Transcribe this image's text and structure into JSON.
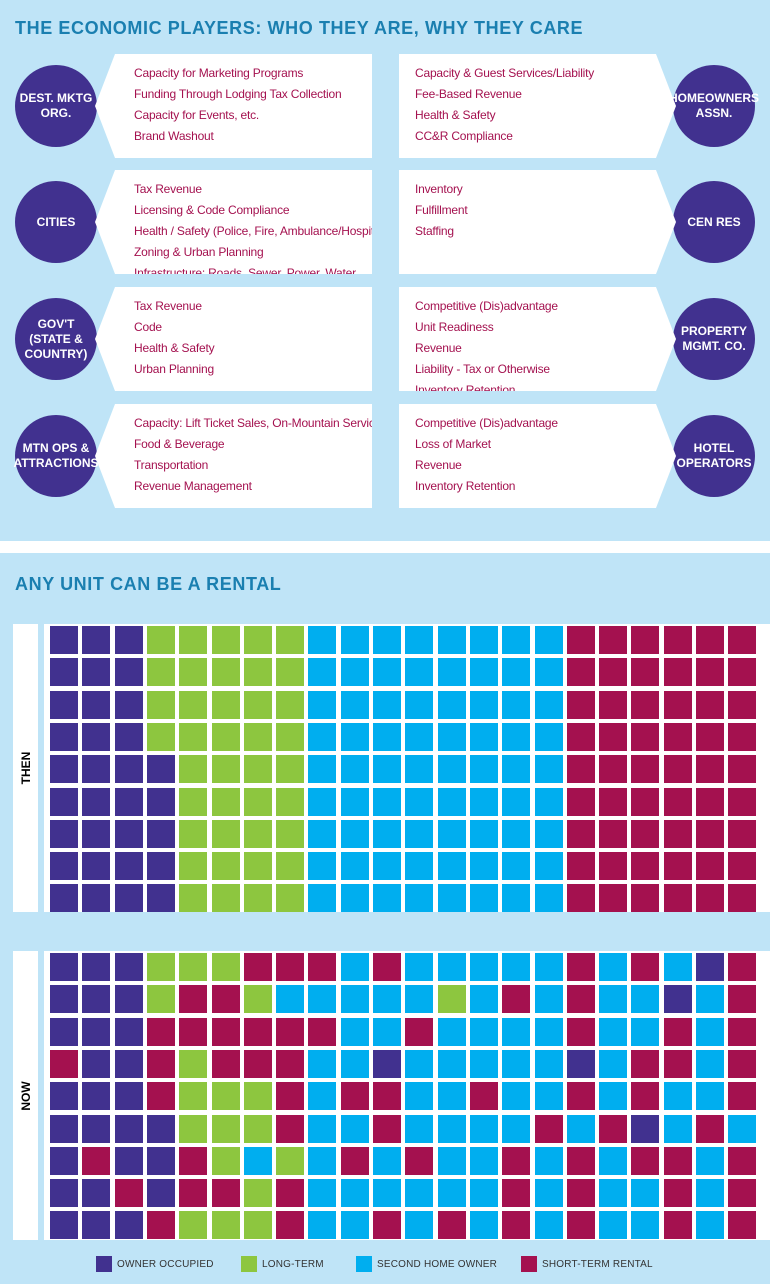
{
  "section1_title": "THE ECONOMIC PLAYERS: WHO THEY ARE, WHY THEY CARE",
  "section2_title": "ANY UNIT CAN BE A RENTAL",
  "colors": {
    "owner_occupied": "#41318f",
    "long_term": "#8dc63f",
    "second_home_owner": "#00aeef",
    "short_term_rental": "#a4114f"
  },
  "players": [
    {
      "left": {
        "name": "DEST. MKTG\nORG.",
        "items": [
          "Capacity for Marketing Programs",
          "Funding Through Lodging Tax Collection",
          "Capacity for Events, etc.",
          "Brand Washout"
        ]
      },
      "right": {
        "name": "HOMEOWNERS\nASSN.",
        "items": [
          "Capacity & Guest Services/Liability",
          "Fee-Based Revenue",
          "Health & Safety",
          "CC&R Compliance"
        ]
      }
    },
    {
      "left": {
        "name": "CITIES",
        "items": [
          "Tax Revenue",
          "Licensing & Code Compliance",
          "Health / Safety (Police, Fire, Ambulance/Hospital)",
          "Zoning & Urban Planning",
          "Infrastructure:  Roads, Sewer, Power, Water"
        ]
      },
      "right": {
        "name": "CEN RES",
        "items": [
          "Inventory",
          "Fulfillment",
          "Staffing"
        ]
      }
    },
    {
      "left": {
        "name": "GOV'T\n(STATE &\nCOUNTRY)",
        "items": [
          "Tax Revenue",
          "Code",
          "Health & Safety",
          "Urban Planning"
        ]
      },
      "right": {
        "name": "PROPERTY\nMGMT. CO.",
        "items": [
          "Competitive (Dis)advantage",
          "Unit Readiness",
          "Revenue",
          "Liability - Tax or Otherwise",
          "Inventory Retention"
        ]
      }
    },
    {
      "left": {
        "name": "MTN OPS &\nATTRACTIONS",
        "items": [
          "Capacity:  Lift Ticket Sales, On-Mountain Services",
          "Food & Beverage",
          "Transportation",
          "Revenue Management"
        ]
      },
      "right": {
        "name": "HOTEL\nOPERATORS",
        "items": [
          "Competitive (Dis)advantage",
          "Loss of Market",
          "Revenue",
          "Inventory Retention"
        ]
      }
    }
  ],
  "then_label": "THEN",
  "now_label": "NOW",
  "then_grid": [
    "OOOLLLLLSSSSSSSSRRRRRR",
    "OOOLLLLLSSSSSSSSRRRRRR",
    "OOOLLLLLSSSSSSSSRRRRRR",
    "OOOLLLLLSSSSSSSSRRRRRR",
    "OOOOLLLLSSSSSSSSRRRRRR",
    "OOOOLLLLSSSSSSSSRRRRRR",
    "OOOOLLLLSSSSSSSSRRRRRR",
    "OOOOLLLLSSSSSSSSRRRRRR",
    "OOOOLLLLSSSSSSSSRRRRRR"
  ],
  "now_grid": [
    "OOOLLLRRRSRSSSSSRSRSOR",
    "OOOLRRLSSSSSLSRSRSSOSR",
    "OOORRRRRRSSRSSSSRSSRSR",
    "ROORLRRRSSOSSSSSOSRRSR",
    "OOORLLLRSRRSSRSSRSRSSR",
    "OOOOLLLRSSRSSSSRSROSRS",
    "OROORLSLSRSRSSRSRSRRSR",
    "OORORRLRSSSSSSRSRSSRSR",
    "OOORLLLRSSRSRSRSRSSRSR"
  ],
  "legend": [
    {
      "label": "OWNER OCCUPIED",
      "color": "#41318f"
    },
    {
      "label": "LONG-TERM",
      "color": "#8dc63f"
    },
    {
      "label": "SECOND HOME OWNER",
      "color": "#00aeef"
    },
    {
      "label": "SHORT-TERM RENTAL",
      "color": "#a4114f"
    }
  ]
}
